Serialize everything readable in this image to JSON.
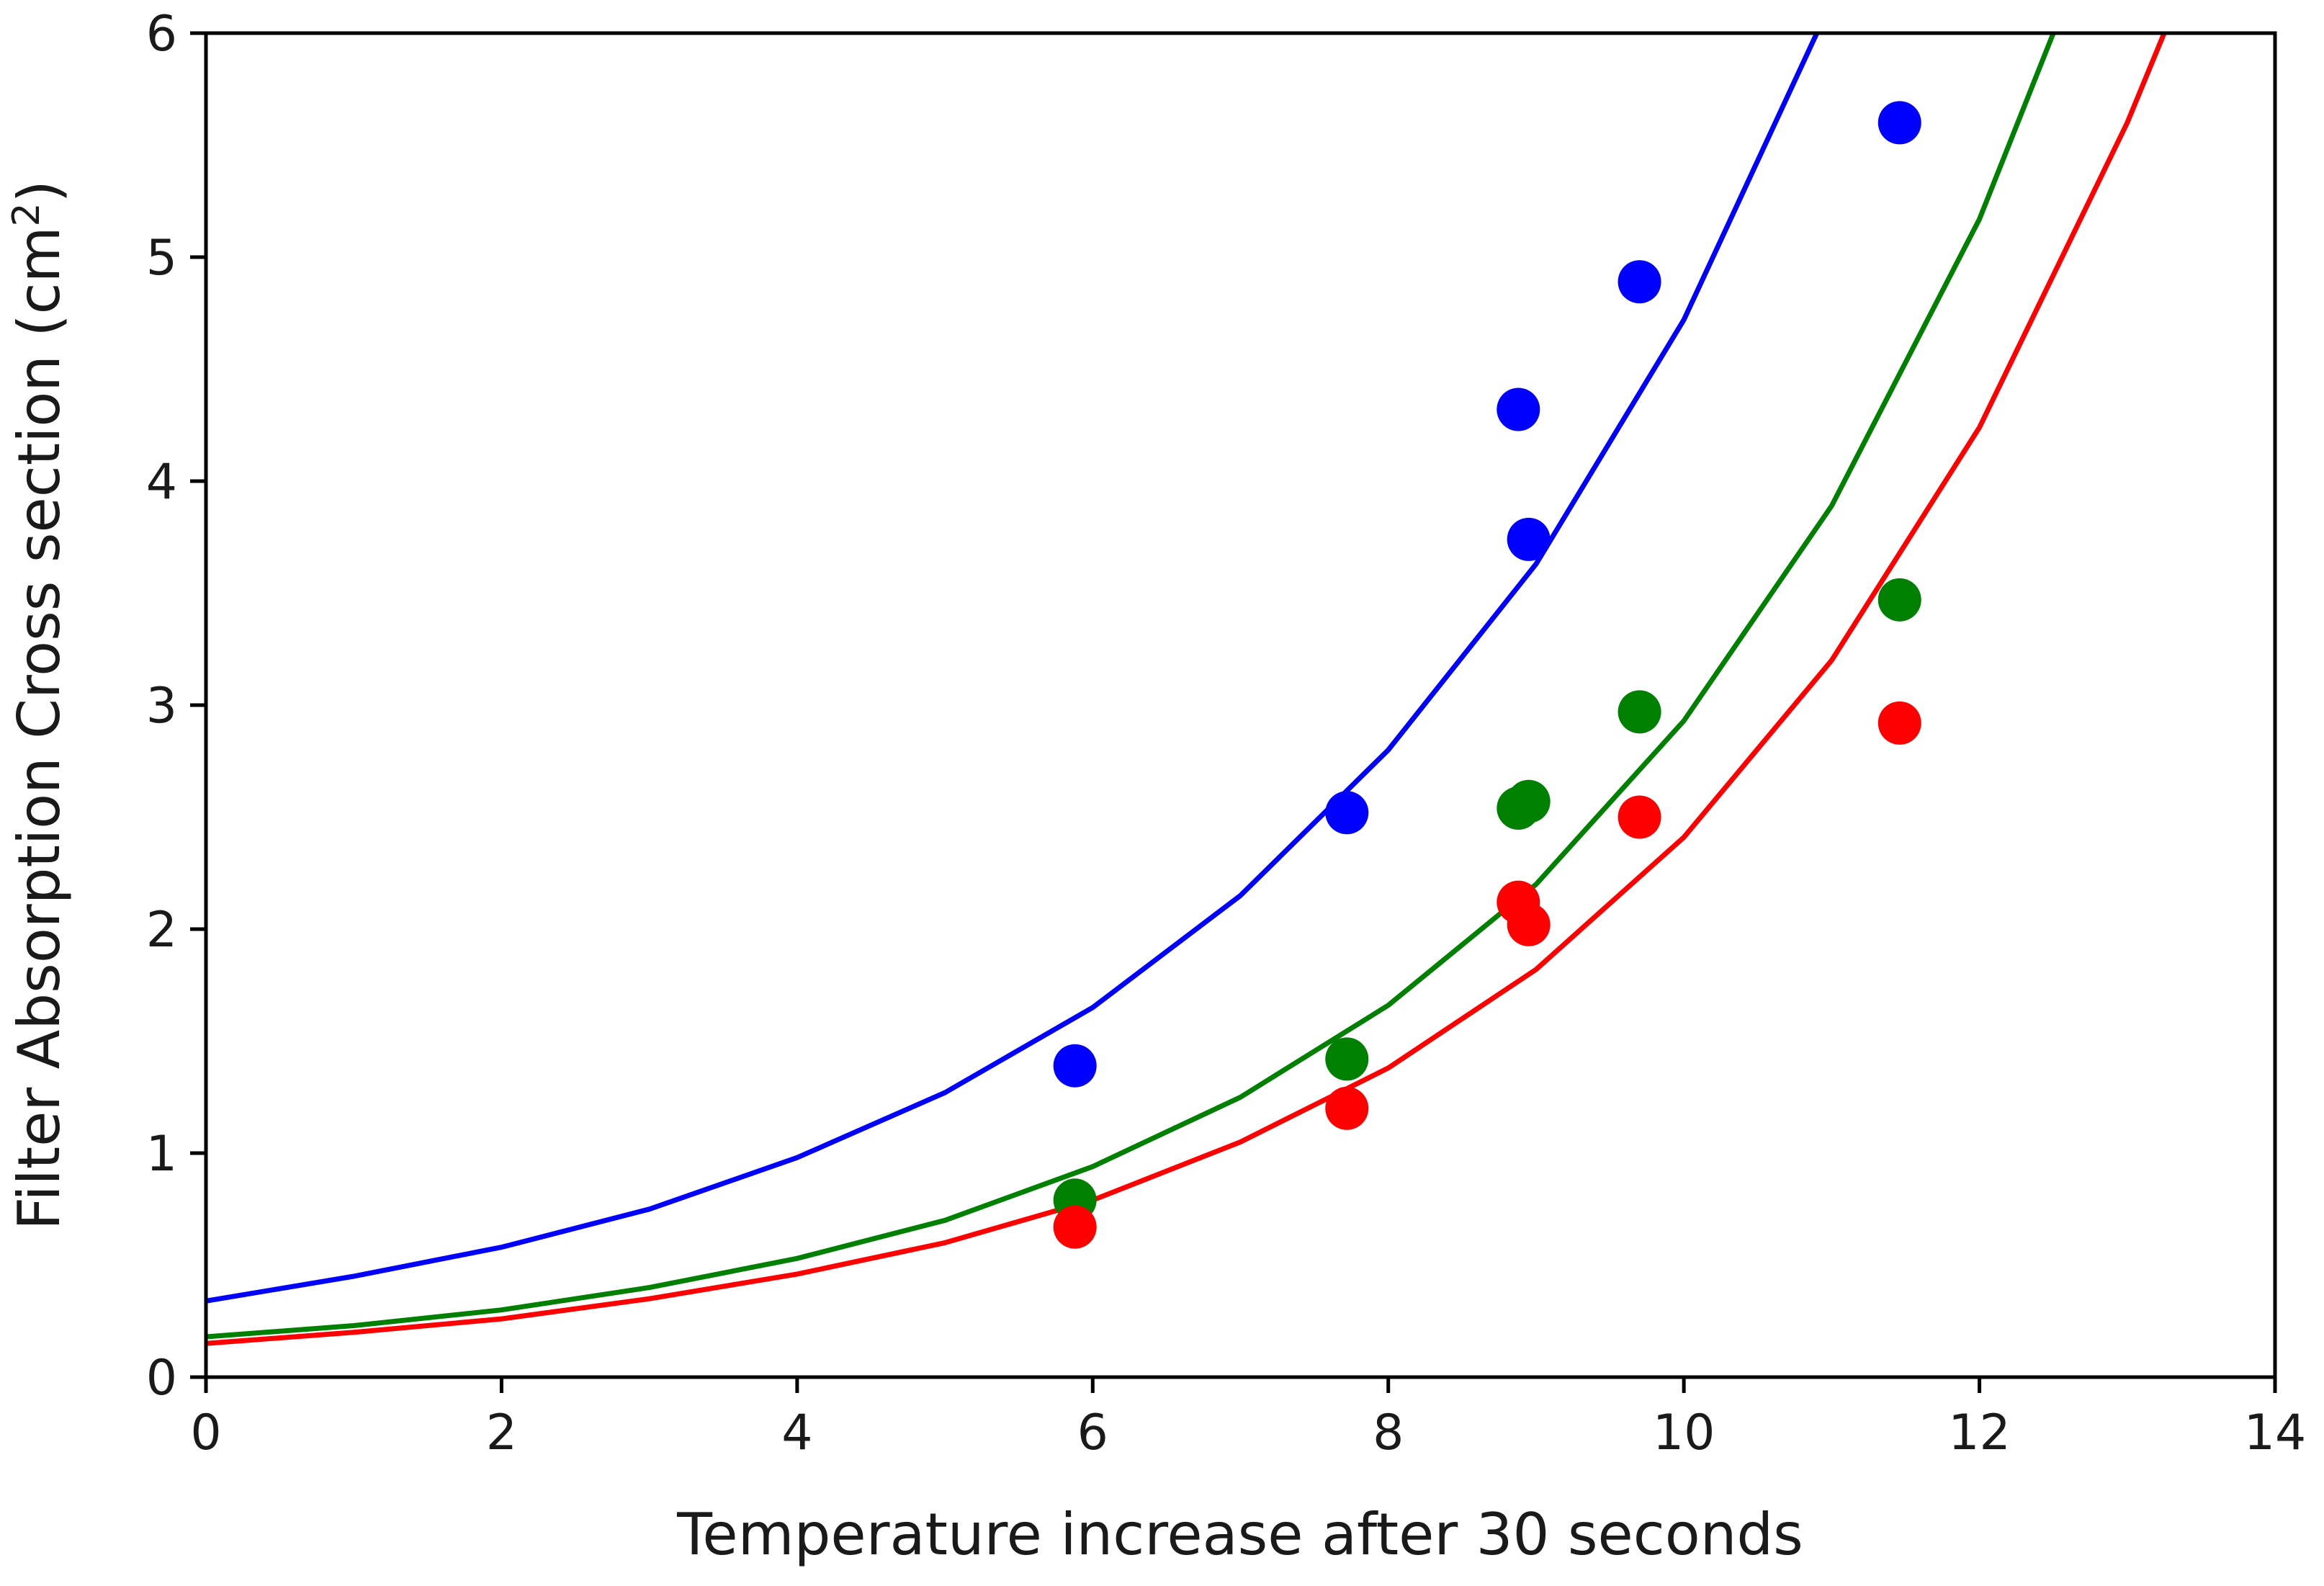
{
  "chart_data": {
    "type": "scatter",
    "title": "",
    "xlabel": "Temperature increase after 30 seconds",
    "ylabel_main": "Filter Absorption Cross section (cm",
    "ylabel_sup": "2",
    "ylabel_close": ")",
    "xlim": [
      0,
      14
    ],
    "ylim": [
      0,
      6
    ],
    "xticks": [
      0,
      2,
      4,
      6,
      8,
      10,
      12,
      14
    ],
    "yticks": [
      0,
      1,
      2,
      3,
      4,
      5,
      6
    ],
    "grid": false,
    "series": [
      {
        "name": "blue",
        "color": "#0000ff",
        "points": [
          {
            "x": 5.88,
            "y": 1.39
          },
          {
            "x": 7.72,
            "y": 2.52
          },
          {
            "x": 8.88,
            "y": 4.32
          },
          {
            "x": 8.95,
            "y": 3.74
          },
          {
            "x": 9.7,
            "y": 4.89
          },
          {
            "x": 11.46,
            "y": 5.6
          }
        ],
        "curve": {
          "x": [
            0,
            1,
            2,
            3,
            4,
            5,
            6,
            7,
            8,
            9,
            10,
            10.9
          ],
          "y": [
            0.34,
            0.45,
            0.58,
            0.75,
            0.98,
            1.27,
            1.65,
            2.15,
            2.8,
            3.63,
            4.72,
            6.0
          ]
        }
      },
      {
        "name": "green",
        "color": "#008000",
        "points": [
          {
            "x": 5.88,
            "y": 0.79
          },
          {
            "x": 7.72,
            "y": 1.42
          },
          {
            "x": 8.88,
            "y": 2.54
          },
          {
            "x": 8.95,
            "y": 2.57
          },
          {
            "x": 9.7,
            "y": 2.97
          },
          {
            "x": 11.46,
            "y": 3.47
          }
        ],
        "curve": {
          "x": [
            0,
            1,
            2,
            3,
            4,
            5,
            6,
            7,
            8,
            9,
            10,
            11,
            12,
            12.5
          ],
          "y": [
            0.18,
            0.23,
            0.3,
            0.4,
            0.53,
            0.7,
            0.94,
            1.25,
            1.66,
            2.2,
            2.93,
            3.89,
            5.17,
            6.0
          ]
        }
      },
      {
        "name": "red",
        "color": "#ff0000",
        "points": [
          {
            "x": 5.88,
            "y": 0.67
          },
          {
            "x": 7.72,
            "y": 1.2
          },
          {
            "x": 8.88,
            "y": 2.12
          },
          {
            "x": 8.95,
            "y": 2.02
          },
          {
            "x": 9.7,
            "y": 2.5
          },
          {
            "x": 11.46,
            "y": 2.92
          }
        ],
        "curve": {
          "x": [
            0,
            1,
            2,
            3,
            4,
            5,
            6,
            7,
            8,
            9,
            10,
            11,
            12,
            13,
            13.25
          ],
          "y": [
            0.15,
            0.2,
            0.26,
            0.35,
            0.46,
            0.6,
            0.79,
            1.05,
            1.38,
            1.82,
            2.41,
            3.2,
            4.24,
            5.6,
            6.0
          ]
        }
      }
    ]
  }
}
